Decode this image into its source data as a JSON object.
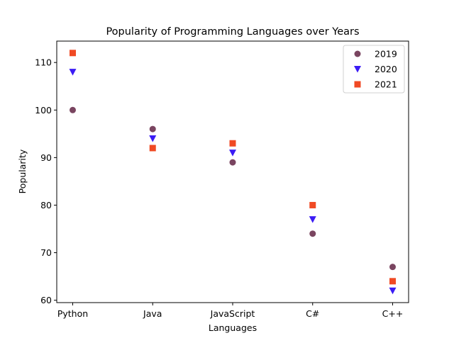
{
  "chart_data": {
    "type": "scatter",
    "title": "Popularity of Programming Languages over Years",
    "xlabel": "Languages",
    "ylabel": "Popularity",
    "categories": [
      "Python",
      "Java",
      "JavaScript",
      "C#",
      "C++"
    ],
    "ylim": [
      59.5,
      114.5
    ],
    "yticks": [
      60,
      70,
      80,
      90,
      100,
      110
    ],
    "grid": false,
    "legend_position": "top-right",
    "series": [
      {
        "name": "2019",
        "marker": "circle",
        "color": "#7a4560",
        "values": [
          100,
          96,
          89,
          74,
          67
        ]
      },
      {
        "name": "2020",
        "marker": "triangle-down",
        "color": "#3b1cf5",
        "values": [
          108,
          94,
          91,
          77,
          62
        ]
      },
      {
        "name": "2021",
        "marker": "square",
        "color": "#f04a24",
        "values": [
          112,
          92,
          93,
          80,
          64
        ]
      }
    ]
  }
}
